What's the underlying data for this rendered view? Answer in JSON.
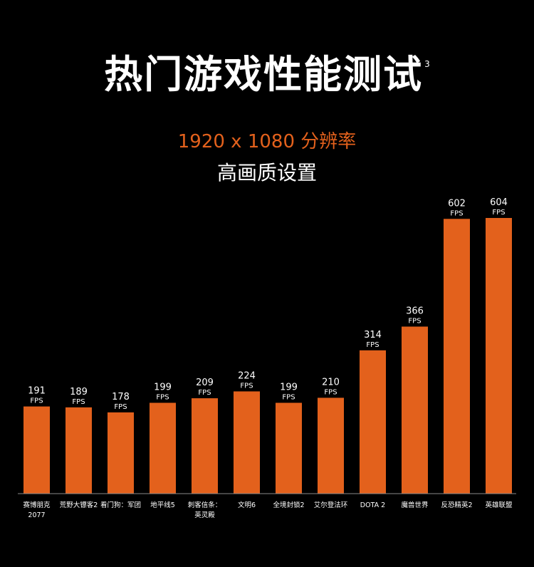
{
  "header": {
    "title": "热门游戏性能测试",
    "footnote": "3",
    "subtitle": "1920 x 1080 分辨率",
    "subtitle2": "高画质设置"
  },
  "colors": {
    "background": "#000000",
    "bar": "#e3611c",
    "accent_text": "#e3611c",
    "axis": "#8a8a8a",
    "text": "#ffffff"
  },
  "chart_data": {
    "type": "bar",
    "unit": "FPS",
    "categories": [
      [
        "赛博朋克",
        "2077"
      ],
      [
        "荒野大镖客2"
      ],
      [
        "看门狗：军团"
      ],
      [
        "地平线5"
      ],
      [
        "刺客信条：",
        "英灵殿"
      ],
      [
        "文明6"
      ],
      [
        "全境封锁2"
      ],
      [
        "艾尔登法环"
      ],
      [
        "DOTA 2"
      ],
      [
        "魔兽世界"
      ],
      [
        "反恐精英2"
      ],
      [
        "英雄联盟"
      ]
    ],
    "values": [
      191,
      189,
      178,
      199,
      209,
      224,
      199,
      210,
      314,
      366,
      602,
      604
    ],
    "ylim": [
      0,
      620
    ],
    "grid": false,
    "legend": "none"
  }
}
